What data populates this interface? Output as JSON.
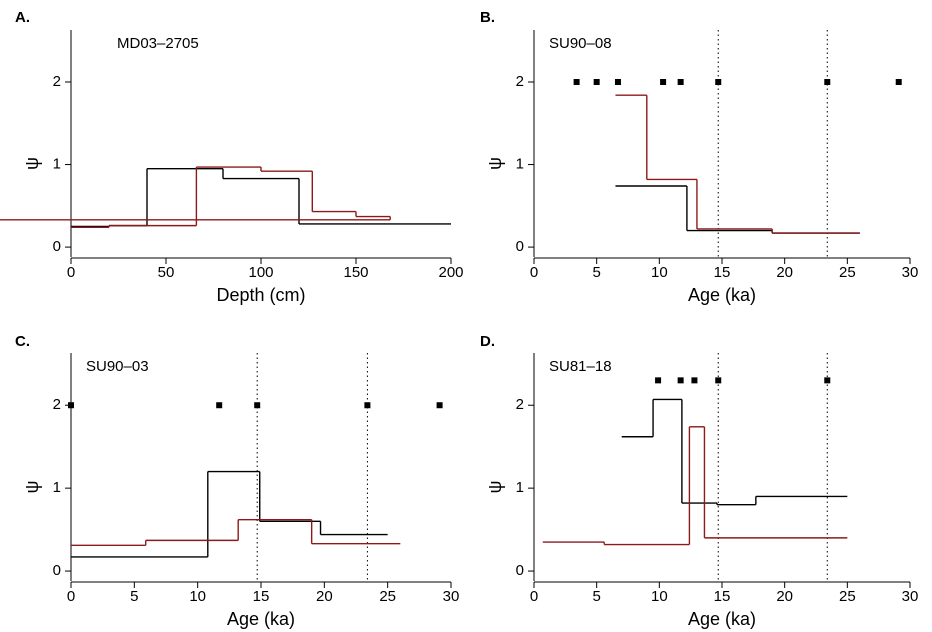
{
  "chart_data": [
    {
      "type": "step",
      "label": "A.",
      "title": "MD03–2705",
      "xlabel": "Depth (cm)",
      "ylabel": "ψ",
      "xlim": [
        0,
        200
      ],
      "xticks": [
        0,
        50,
        100,
        150,
        200
      ],
      "ylim": [
        -0.12,
        2.63
      ],
      "yticks": [
        0,
        1,
        2
      ],
      "series": [
        {
          "color": "#000000",
          "bins": [
            0,
            20,
            40,
            80,
            120,
            200
          ],
          "values": [
            0.25,
            0.26,
            0.95,
            0.83,
            0.28
          ]
        },
        {
          "color": "#8b1a1a",
          "bins": [
            0,
            20,
            66,
            100,
            127,
            150,
            168
          ],
          "values": [
            0.24,
            0.26,
            0.97,
            0.92,
            0.43,
            0.37,
            0.33
          ]
        }
      ]
    },
    {
      "type": "step",
      "label": "B.",
      "title": "SU90–08",
      "xlabel": "Age (ka)",
      "ylabel": "ψ",
      "xlim": [
        0,
        30
      ],
      "xticks": [
        0,
        5,
        10,
        15,
        20,
        25,
        30
      ],
      "ylim": [
        -0.12,
        2.63
      ],
      "yticks": [
        0,
        1,
        2
      ],
      "series": [
        {
          "color": "#000000",
          "bins": [
            6.5,
            12.2,
            19,
            26
          ],
          "values": [
            0.74,
            0.2,
            0.17
          ]
        },
        {
          "color": "#8b1a1a",
          "bins": [
            6.5,
            9,
            13,
            19,
            26
          ],
          "values": [
            1.84,
            0.82,
            0.22,
            0.17
          ]
        }
      ],
      "markers": {
        "x": [
          3.4,
          5,
          6.7,
          10.3,
          11.7,
          14.7,
          23.4,
          29.1
        ],
        "y": [
          2,
          2,
          2,
          2,
          2,
          2,
          2,
          2
        ]
      },
      "vlines": [
        14.7,
        23.4
      ]
    },
    {
      "type": "step",
      "label": "C.",
      "title": "SU90–03",
      "xlabel": "Age (ka)",
      "ylabel": "ψ",
      "xlim": [
        0,
        30
      ],
      "xticks": [
        0,
        5,
        10,
        15,
        20,
        25,
        30
      ],
      "ylim": [
        -0.12,
        2.63
      ],
      "yticks": [
        0,
        1,
        2
      ],
      "series": [
        {
          "color": "#000000",
          "bins": [
            0,
            10.8,
            14.9,
            19.7,
            25
          ],
          "values": [
            0.17,
            1.2,
            0.6,
            0.44
          ]
        },
        {
          "color": "#8b1a1a",
          "bins": [
            0,
            5.9,
            13.2,
            19,
            26
          ],
          "values": [
            0.31,
            0.37,
            0.62,
            0.33
          ]
        }
      ],
      "markers": {
        "x": [
          0,
          11.7,
          14.7,
          23.4,
          29.1
        ],
        "y": [
          2,
          2,
          2,
          2,
          2
        ]
      },
      "vlines": [
        14.7,
        23.4
      ]
    },
    {
      "type": "step",
      "label": "D.",
      "title": "SU81–18",
      "xlabel": "Age (ka)",
      "ylabel": "ψ",
      "xlim": [
        0,
        30
      ],
      "xticks": [
        0,
        5,
        10,
        15,
        20,
        25,
        30
      ],
      "ylim": [
        -0.12,
        2.63
      ],
      "yticks": [
        0,
        1,
        2
      ],
      "series": [
        {
          "color": "#000000",
          "bins": [
            7,
            9.5,
            11.8,
            14.6,
            17.7,
            25
          ],
          "values": [
            1.62,
            2.07,
            0.82,
            0.8,
            0.9
          ]
        },
        {
          "color": "#8b1a1a",
          "bins": [
            0.7,
            5.6,
            12.4,
            13.6,
            25
          ],
          "values": [
            0.35,
            0.32,
            1.74,
            0.4
          ]
        }
      ],
      "markers": {
        "x": [
          9.9,
          11.7,
          12.8,
          14.7,
          23.4
        ],
        "y": [
          2.3,
          2.3,
          2.3,
          2.3,
          2.3
        ]
      },
      "vlines": [
        14.7,
        23.4
      ]
    }
  ]
}
